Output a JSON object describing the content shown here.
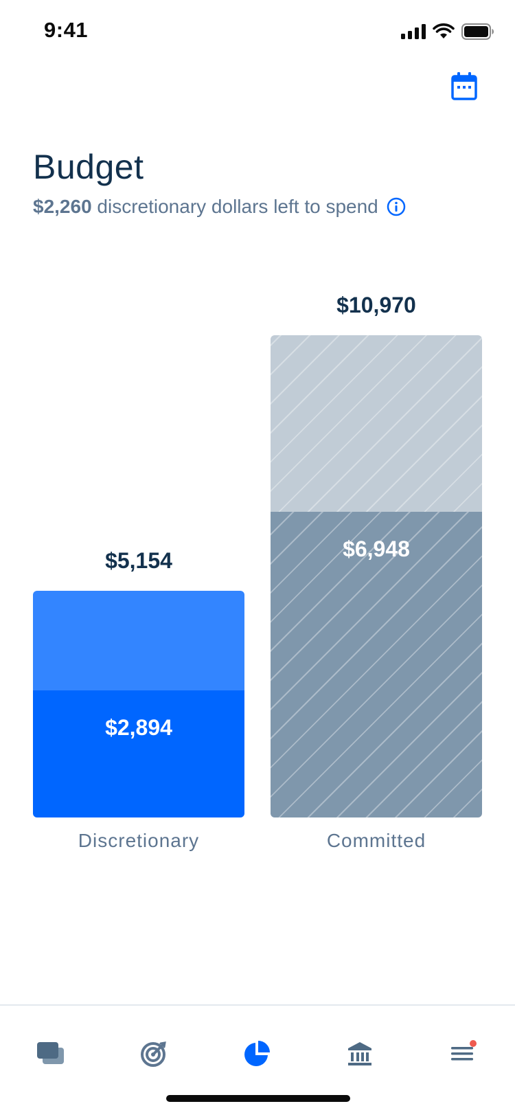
{
  "status_bar": {
    "time": "9:41"
  },
  "header": {
    "title": "Budget"
  },
  "summary": {
    "amount": "$2,260",
    "text": "discretionary dollars left to spend"
  },
  "colors": {
    "accent": "#0066ff",
    "discretionary_light": "#3385ff",
    "discretionary_dark": "#0066ff",
    "committed_light": "#c1ccd6",
    "committed_dark": "#7f97ac",
    "title": "#13314d",
    "muted": "#5d7590"
  },
  "icons": {
    "calendar": "calendar-icon",
    "info": "info-icon",
    "cards": "cards-icon",
    "goals": "target-icon",
    "budget": "pie-chart-icon",
    "bank": "bank-icon",
    "menu": "menu-icon"
  },
  "chart_data": {
    "type": "bar",
    "categories": [
      "Discretionary",
      "Committed"
    ],
    "totals": [
      5154,
      10970
    ],
    "total_labels": [
      "$5,154",
      "$10,970"
    ],
    "series": [
      {
        "values": [
          2894,
          6948
        ],
        "labels": [
          "$2,894",
          "$6,948"
        ]
      }
    ]
  },
  "tab_bar": {
    "items": [
      {
        "icon": "cards-icon",
        "active": false
      },
      {
        "icon": "target-icon",
        "active": false
      },
      {
        "icon": "pie-chart-icon",
        "active": true
      },
      {
        "icon": "bank-icon",
        "active": false
      },
      {
        "icon": "menu-icon",
        "active": false,
        "badge": true
      }
    ]
  }
}
